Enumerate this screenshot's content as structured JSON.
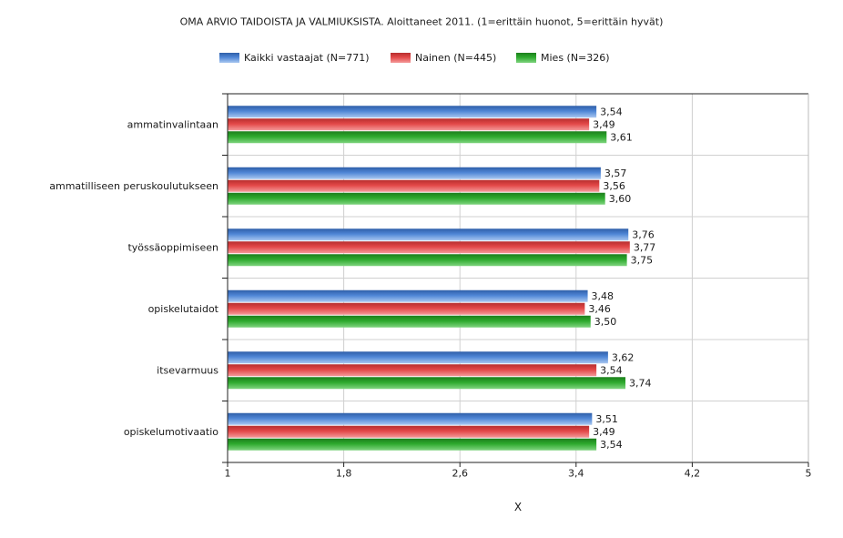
{
  "chart_data": {
    "type": "bar",
    "orientation": "horizontal",
    "title": "OMA ARVIO TAIDOISTA JA VALMIUKSISTA. Aloittaneet 2011. (1=erittäin huonot, 5=erittäin hyvät)",
    "axis_title": "X",
    "xlim": [
      1,
      5
    ],
    "ticks": [
      1,
      1.8,
      2.6,
      3.4,
      4.2,
      5
    ],
    "tick_labels": [
      "1",
      "1,8",
      "2,6",
      "3,4",
      "4,2",
      "5"
    ],
    "grid": true,
    "legend_position": "bottom",
    "categories": [
      "opiskelumotivaatio",
      "itsevarmuus",
      "opiskelutaidot",
      "työssäoppimiseen",
      "ammatilliseen peruskoulutukseen",
      "ammatinvalintaan"
    ],
    "series": [
      {
        "name": "Mies (N=326)",
        "color": "#2eaa2e",
        "values": [
          3.54,
          3.74,
          3.5,
          3.75,
          3.6,
          3.61
        ],
        "labels": [
          "3,54",
          "3,74",
          "3,50",
          "3,75",
          "3,60",
          "3,61"
        ]
      },
      {
        "name": "Nainen (N=445)",
        "color": "#e34848",
        "values": [
          3.49,
          3.54,
          3.46,
          3.77,
          3.56,
          3.49
        ],
        "labels": [
          "3,49",
          "3,54",
          "3,46",
          "3,77",
          "3,56",
          "3,49"
        ]
      },
      {
        "name": "Kaikki vastaajat (N=771)",
        "color": "#4f86d6",
        "values": [
          3.51,
          3.62,
          3.48,
          3.76,
          3.57,
          3.54
        ],
        "labels": [
          "3,51",
          "3,62",
          "3,48",
          "3,76",
          "3,57",
          "3,54"
        ]
      }
    ]
  }
}
